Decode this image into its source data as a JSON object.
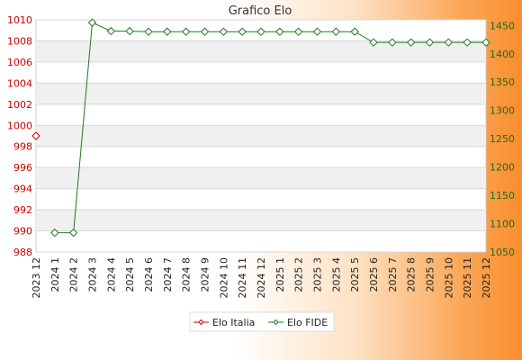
{
  "chart_data": {
    "type": "line",
    "title": "Grafico Elo",
    "categories": [
      "2023 12",
      "2024 1",
      "2024 2",
      "2024 3",
      "2024 4",
      "2024 5",
      "2024 6",
      "2024 7",
      "2024 8",
      "2024 9",
      "2024 10",
      "2024 11",
      "2024 12",
      "2025 1",
      "2025 2",
      "2025 3",
      "2025 4",
      "2025 5",
      "2025 6",
      "2025 7",
      "2025 8",
      "2025 9",
      "2025 10",
      "2025 11",
      "2025 12"
    ],
    "series": [
      {
        "name": "Elo Italia",
        "axis": "left",
        "color": "#cc0000",
        "values": [
          999,
          null,
          null,
          null,
          null,
          null,
          null,
          null,
          null,
          null,
          null,
          null,
          null,
          null,
          null,
          null,
          null,
          null,
          null,
          null,
          null,
          null,
          null,
          null,
          null
        ]
      },
      {
        "name": "Elo FIDE",
        "axis": "right",
        "color": "#1f7a1f",
        "values": [
          null,
          1084,
          1084,
          1455,
          1440,
          1440,
          1439,
          1439,
          1439,
          1439,
          1439,
          1439,
          1439,
          1439,
          1439,
          1439,
          1439,
          1439,
          1420,
          1420,
          1420,
          1420,
          1420,
          1420,
          1420
        ]
      }
    ],
    "y_left": {
      "min": 988,
      "max": 1010,
      "ticks": [
        "1010",
        "1008",
        "1006",
        "1004",
        "1002",
        "1000",
        "998",
        "996",
        "994",
        "992",
        "990",
        "988"
      ]
    },
    "y_right": {
      "min": 1050,
      "max": 1460,
      "ticks": [
        "1450",
        "1400",
        "1350",
        "1300",
        "1250",
        "1200",
        "1150",
        "1100",
        "1050"
      ]
    },
    "grid": true,
    "legend_position": "bottom-center"
  }
}
